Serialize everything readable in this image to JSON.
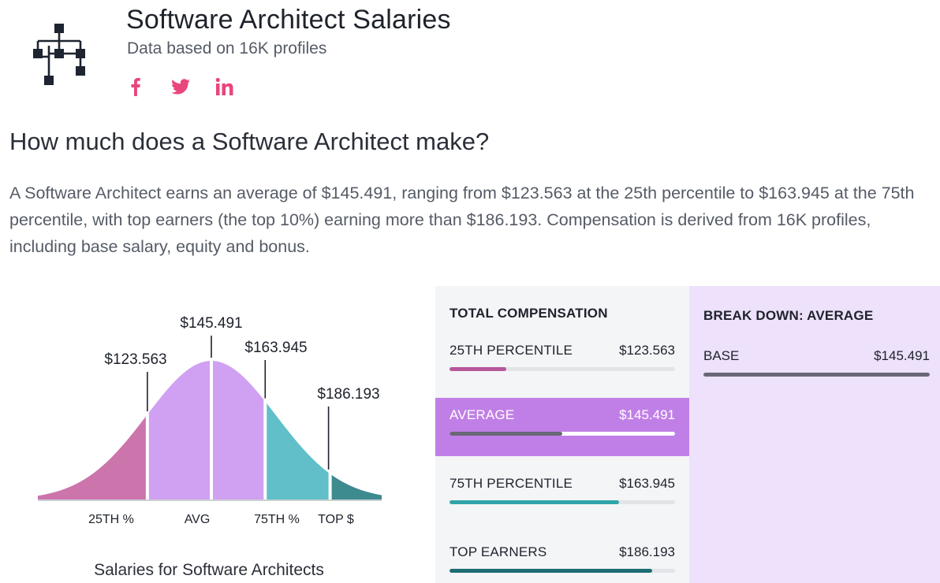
{
  "header": {
    "title": "Software Architect Salaries",
    "subtitle": "Data based on 16K profiles",
    "logo_icon": "org-hierarchy-icon",
    "social": [
      {
        "name": "facebook-icon",
        "glyph": "f"
      },
      {
        "name": "twitter-icon",
        "glyph": ""
      },
      {
        "name": "linkedin-icon",
        "glyph": "in"
      }
    ],
    "social_color": "#e8467c"
  },
  "question": "How much does a Software Architect make?",
  "description": "A Software Architect earns an average of $145.491, ranging from $123.563 at the 25th percentile to $163.945 at the 75th percentile, with top earners (the top 10%) earning more than $186.193. Compensation is derived from 16K profiles, including base salary, equity and bonus.",
  "chart_data": {
    "type": "area",
    "title": "",
    "caption": "Salaries for Software Architects",
    "segments": [
      {
        "label": "25TH %",
        "value_label": "$123.563",
        "value": 123563,
        "color": "#cc74ac"
      },
      {
        "label": "AVG",
        "value_label": "$145.491",
        "value": 145491,
        "color": "#d0a0f2"
      },
      {
        "label": "75TH %",
        "value_label": "$163.945",
        "value": 163945,
        "color": "#60bfc8"
      },
      {
        "label": "TOP $",
        "value_label": "$186.193",
        "value": 186193,
        "color": "#3d8a8f"
      }
    ]
  },
  "total_compensation": {
    "title": "TOTAL COMPENSATION",
    "rows": [
      {
        "label": "25TH PERCENTILE",
        "value": "$123.563",
        "fill": 0.25,
        "color": "#b5579a",
        "active": false
      },
      {
        "label": "AVERAGE",
        "value": "$145.491",
        "fill": 0.5,
        "color": "#6a6878",
        "active": true
      },
      {
        "label": "75TH PERCENTILE",
        "value": "$163.945",
        "fill": 0.75,
        "color": "#2fa5a9",
        "active": false
      },
      {
        "label": "TOP EARNERS",
        "value": "$186.193",
        "fill": 0.9,
        "color": "#1d6d72",
        "active": false
      }
    ]
  },
  "breakdown": {
    "title": "BREAK DOWN: AVERAGE",
    "label": "BASE",
    "value": "$145.491",
    "fill": 1.0
  }
}
